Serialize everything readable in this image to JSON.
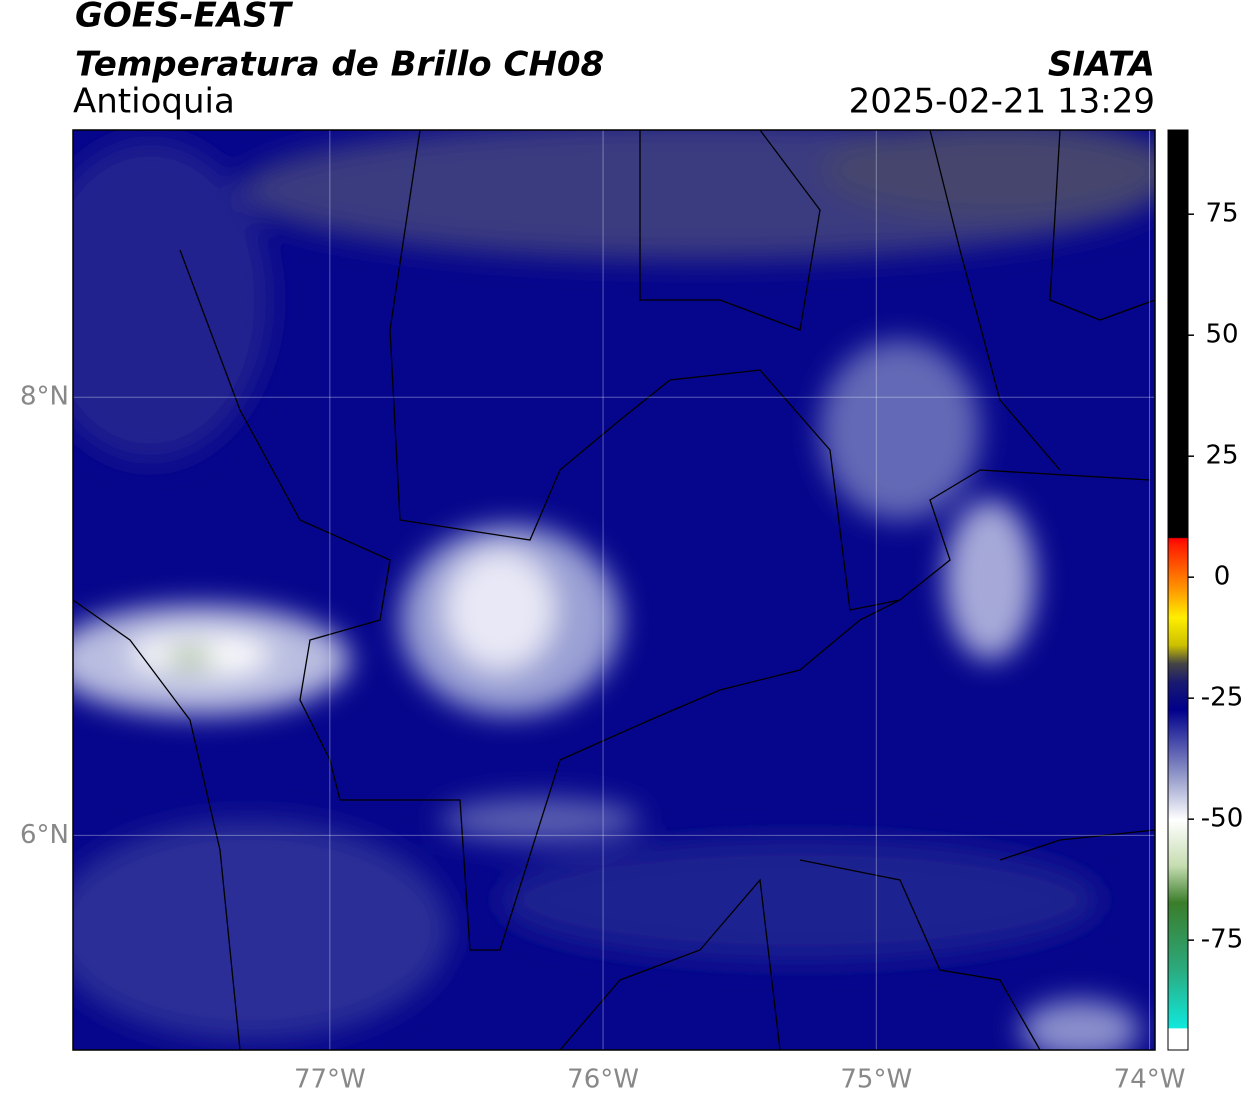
{
  "header": {
    "title": "GOES-EAST",
    "subtitle": "Temperatura de Brillo CH08",
    "region": "Antioquia",
    "source": "SIATA",
    "datetime": "2025-02-21 13:29"
  },
  "map": {
    "xlim": [
      -77.94,
      -73.98
    ],
    "ylim": [
      5.02,
      9.22
    ],
    "xticks": [
      {
        "value": -77,
        "label": "77°W"
      },
      {
        "value": -76,
        "label": "76°W"
      },
      {
        "value": -75,
        "label": "75°W"
      },
      {
        "value": -74,
        "label": "74°W"
      }
    ],
    "yticks": [
      {
        "value": 6,
        "label": "6°N"
      },
      {
        "value": 8,
        "label": "8°N"
      }
    ],
    "grid": true
  },
  "colorbar": {
    "lim": [
      -97.7,
      92.4
    ],
    "ticks": [
      75,
      50,
      25,
      0,
      -25,
      -50,
      -75
    ]
  }
}
